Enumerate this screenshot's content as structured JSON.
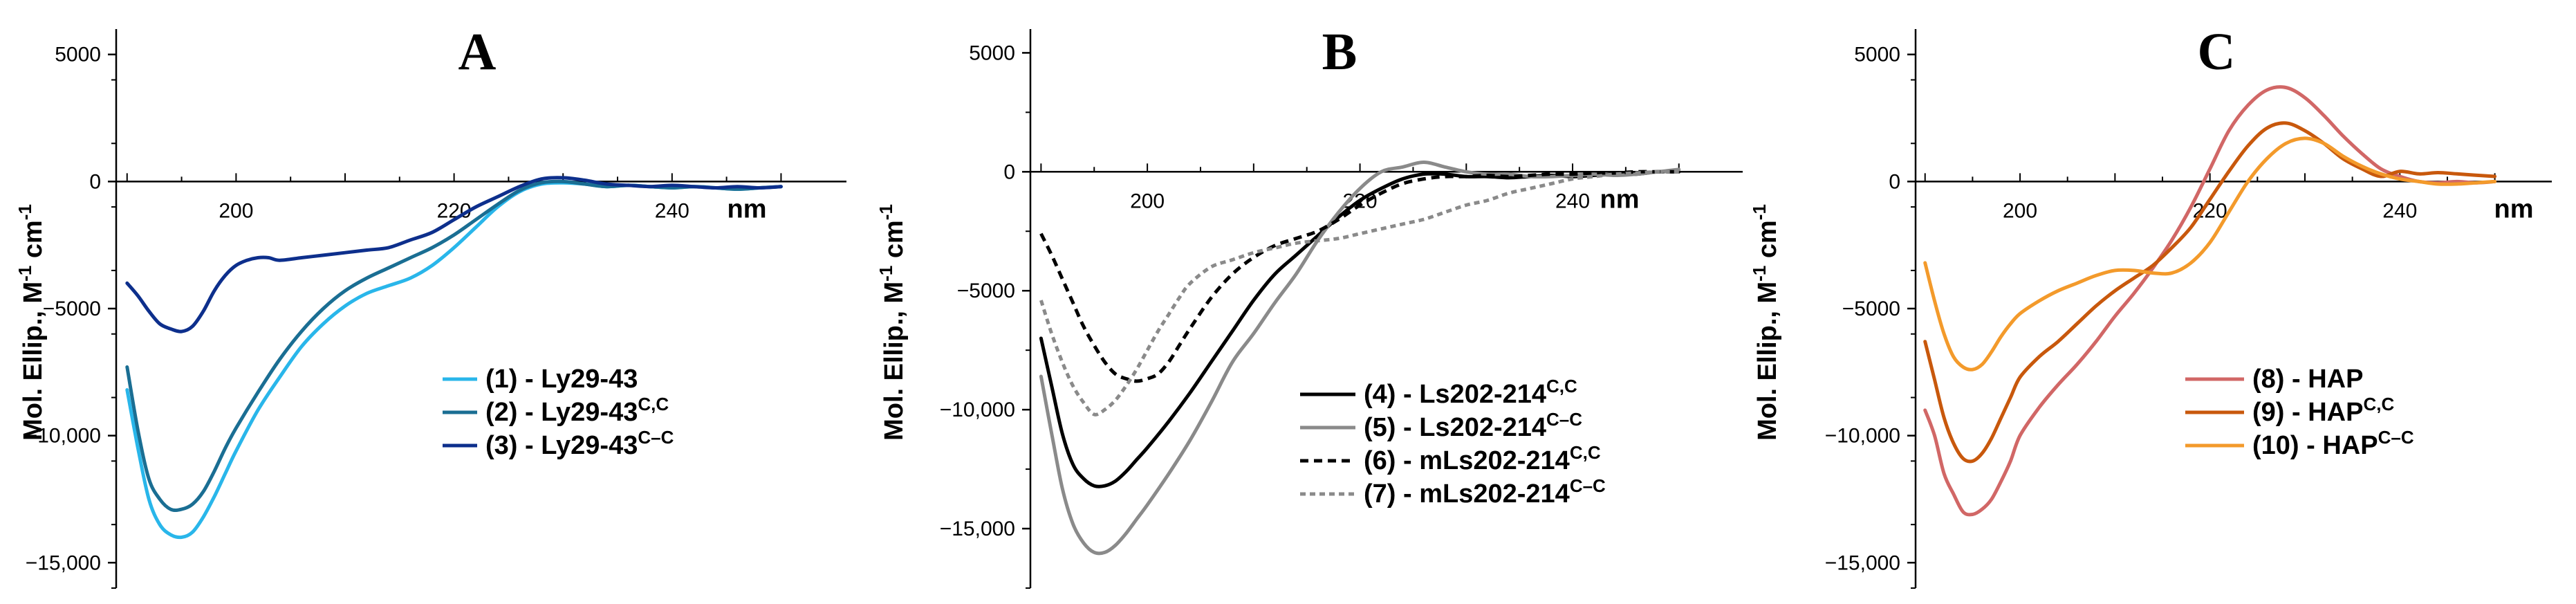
{
  "chart_data": [
    {
      "type": "line",
      "panel": "A",
      "xlabel": "nm",
      "ylabel_parts": [
        "Mol. Ellip., M",
        "-1",
        " cm",
        "-1"
      ],
      "xlim": [
        189,
        256
      ],
      "ylim": [
        -16000,
        6000
      ],
      "xticks": [
        200,
        220,
        240
      ],
      "yticks": [
        5000,
        0,
        -5000,
        -10000,
        -15000
      ],
      "ytick_labels": [
        "5000",
        "0",
        "−5000",
        "−10,000",
        "−15,000"
      ],
      "legend_position": "lower-right",
      "series": [
        {
          "label": "(1) - Ly29-43",
          "sup": "",
          "color": "#29b6ea",
          "dash": "solid",
          "x": [
            190,
            191,
            192,
            193,
            194,
            195,
            196,
            197,
            198,
            199,
            200,
            202,
            204,
            206,
            208,
            210,
            212,
            214,
            216,
            218,
            220,
            222,
            224,
            226,
            228,
            230,
            232,
            234,
            236,
            238,
            240,
            242,
            244,
            246,
            248,
            250
          ],
          "y": [
            -8200,
            -10500,
            -12500,
            -13500,
            -13900,
            -14000,
            -13800,
            -13200,
            -12400,
            -11500,
            -10600,
            -9000,
            -7700,
            -6500,
            -5600,
            -4900,
            -4400,
            -4100,
            -3800,
            -3300,
            -2600,
            -1800,
            -1000,
            -400,
            -100,
            -50,
            -100,
            -200,
            -150,
            -200,
            -250,
            -200,
            -250,
            -300,
            -250,
            -200
          ]
        },
        {
          "label": "(2) - Ly29-43",
          "sup": "C,C",
          "color": "#1a6e93",
          "dash": "solid",
          "x": [
            190,
            191,
            192,
            193,
            194,
            195,
            196,
            197,
            198,
            199,
            200,
            202,
            204,
            206,
            208,
            210,
            212,
            214,
            216,
            218,
            220,
            222,
            224,
            226,
            228,
            230,
            232,
            234,
            236,
            238,
            240,
            242,
            244,
            246,
            248,
            250
          ],
          "y": [
            -7300,
            -9800,
            -11700,
            -12500,
            -12900,
            -12900,
            -12700,
            -12200,
            -11400,
            -10500,
            -9700,
            -8300,
            -7000,
            -5900,
            -5000,
            -4300,
            -3800,
            -3400,
            -3000,
            -2600,
            -2100,
            -1500,
            -900,
            -350,
            -50,
            0,
            -100,
            -200,
            -150,
            -200,
            -250,
            -200,
            -250,
            -300,
            -250,
            -200
          ]
        },
        {
          "label": "(3) - Ly29-43",
          "sup": "C–C",
          "color": "#0d2f8c",
          "dash": "solid",
          "x": [
            190,
            191,
            192,
            193,
            194,
            195,
            196,
            197,
            198,
            199,
            200,
            201,
            202,
            203,
            204,
            206,
            208,
            210,
            212,
            214,
            216,
            218,
            220,
            222,
            224,
            226,
            228,
            230,
            232,
            234,
            236,
            238,
            240,
            242,
            244,
            246,
            248,
            250
          ],
          "y": [
            -4000,
            -4500,
            -5100,
            -5600,
            -5800,
            -5900,
            -5700,
            -5100,
            -4300,
            -3700,
            -3300,
            -3100,
            -3000,
            -3000,
            -3100,
            -3000,
            -2900,
            -2800,
            -2700,
            -2600,
            -2300,
            -2000,
            -1500,
            -1000,
            -600,
            -200,
            100,
            150,
            50,
            -100,
            -150,
            -200,
            -150,
            -200,
            -250,
            -200,
            -250,
            -200
          ]
        }
      ]
    },
    {
      "type": "line",
      "panel": "B",
      "xlabel": "nm",
      "ylabel_parts": [
        "Mol. Ellip., M",
        "-1",
        " cm",
        "-1"
      ],
      "xlim": [
        189,
        256
      ],
      "ylim": [
        -17500,
        6000
      ],
      "xticks": [
        200,
        220,
        240
      ],
      "yticks": [
        5000,
        0,
        -5000,
        -10000,
        -15000
      ],
      "ytick_labels": [
        "5000",
        "0",
        "−5000",
        "−10,000",
        "−15,000"
      ],
      "legend_position": "lower-right",
      "series": [
        {
          "label": "(4) -    Ls202-214",
          "sup": "C,C",
          "color": "#000000",
          "dash": "solid",
          "x": [
            190,
            191,
            192,
            193,
            194,
            195,
            196,
            197,
            198,
            199,
            200,
            202,
            204,
            206,
            208,
            210,
            212,
            214,
            216,
            218,
            220,
            222,
            224,
            226,
            228,
            230,
            232,
            234,
            236,
            238,
            240,
            242,
            244,
            246,
            248,
            250
          ],
          "y": [
            -7000,
            -9000,
            -11000,
            -12300,
            -12900,
            -13200,
            -13200,
            -13000,
            -12600,
            -12100,
            -11600,
            -10500,
            -9300,
            -8000,
            -6700,
            -5400,
            -4300,
            -3500,
            -2700,
            -1900,
            -1200,
            -700,
            -300,
            -100,
            -100,
            -200,
            -200,
            -250,
            -200,
            -150,
            -200,
            -150,
            -100,
            -100,
            0,
            0
          ]
        },
        {
          "label": "(5) -    Ls202-214",
          "sup": "C–C",
          "color": "#8a8a8a",
          "dash": "solid",
          "x": [
            190,
            191,
            192,
            193,
            194,
            195,
            196,
            197,
            198,
            199,
            200,
            202,
            204,
            206,
            208,
            210,
            212,
            214,
            216,
            218,
            220,
            222,
            224,
            226,
            228,
            230,
            232,
            234,
            236,
            238,
            240,
            242,
            244,
            246,
            248,
            250
          ],
          "y": [
            -8600,
            -11000,
            -13300,
            -14800,
            -15600,
            -16000,
            -16000,
            -15700,
            -15200,
            -14600,
            -14000,
            -12700,
            -11300,
            -9700,
            -8000,
            -6800,
            -5500,
            -4300,
            -2900,
            -1700,
            -700,
            0,
            200,
            400,
            200,
            0,
            -100,
            -100,
            -200,
            -200,
            -150,
            -100,
            -150,
            -100,
            0,
            100
          ]
        },
        {
          "label": "(6) - mLs202-214",
          "sup": "C,C",
          "color": "#000000",
          "dash": "12,8",
          "x": [
            190,
            191,
            192,
            193,
            194,
            195,
            196,
            197,
            198,
            199,
            200,
            201,
            202,
            203,
            204,
            206,
            208,
            210,
            212,
            214,
            216,
            218,
            220,
            222,
            224,
            226,
            228,
            230,
            232,
            234,
            236,
            238,
            240,
            242,
            244,
            246,
            248,
            250
          ],
          "y": [
            -2600,
            -3500,
            -4500,
            -5500,
            -6500,
            -7300,
            -8000,
            -8500,
            -8700,
            -8800,
            -8700,
            -8500,
            -8000,
            -7300,
            -6600,
            -5300,
            -4300,
            -3600,
            -3100,
            -2800,
            -2500,
            -2000,
            -1400,
            -900,
            -500,
            -300,
            -200,
            -200,
            -150,
            -200,
            -150,
            -100,
            -100,
            -50,
            -50,
            0,
            0,
            0
          ]
        },
        {
          "label": "(7) - mLs202-214",
          "sup": "C–C",
          "color": "#8a8a8a",
          "dash": "8,6",
          "x": [
            190,
            191,
            192,
            193,
            194,
            195,
            196,
            197,
            198,
            199,
            200,
            201,
            202,
            203,
            204,
            206,
            208,
            210,
            212,
            214,
            216,
            218,
            220,
            222,
            224,
            226,
            228,
            230,
            232,
            234,
            236,
            238,
            240,
            242,
            244,
            246,
            248,
            250
          ],
          "y": [
            -5400,
            -6800,
            -8000,
            -9000,
            -9700,
            -10200,
            -10000,
            -9600,
            -9000,
            -8300,
            -7500,
            -6700,
            -6000,
            -5300,
            -4700,
            -4000,
            -3700,
            -3400,
            -3200,
            -3000,
            -2900,
            -2800,
            -2600,
            -2400,
            -2200,
            -2000,
            -1700,
            -1400,
            -1200,
            -900,
            -700,
            -500,
            -300,
            -200,
            -100,
            -50,
            0,
            0
          ]
        }
      ]
    },
    {
      "type": "line",
      "panel": "C",
      "xlabel": "nm",
      "ylabel_parts": [
        "Mol. Ellip., M",
        "-1",
        " cm",
        "-1"
      ],
      "xlim": [
        189,
        256
      ],
      "ylim": [
        -16000,
        6000
      ],
      "xticks": [
        200,
        220,
        240
      ],
      "yticks": [
        5000,
        0,
        -5000,
        -10000,
        -15000
      ],
      "ytick_labels": [
        "5000",
        "0",
        "−5000",
        "−10,000",
        "−15,000"
      ],
      "legend_position": "lower-right",
      "series": [
        {
          "label": "(8)   - HAP",
          "sup": "",
          "color": "#d16766",
          "dash": "solid",
          "x": [
            190,
            191,
            192,
            193,
            194,
            195,
            196,
            197,
            198,
            199,
            200,
            202,
            204,
            206,
            208,
            210,
            212,
            214,
            216,
            218,
            220,
            222,
            224,
            226,
            228,
            230,
            232,
            234,
            236,
            238,
            240,
            242,
            244,
            246,
            248,
            250
          ],
          "y": [
            -9000,
            -10000,
            -11500,
            -12300,
            -13000,
            -13100,
            -12900,
            -12500,
            -11800,
            -11000,
            -10000,
            -8900,
            -8000,
            -7200,
            -6300,
            -5300,
            -4400,
            -3400,
            -2300,
            -1000,
            500,
            2000,
            3000,
            3600,
            3700,
            3300,
            2600,
            1800,
            1100,
            500,
            200,
            0,
            -50,
            0,
            -50,
            0
          ]
        },
        {
          "label": "(9)   - HAP",
          "sup": "C,C",
          "color": "#c8580c",
          "dash": "solid",
          "x": [
            190,
            191,
            192,
            193,
            194,
            195,
            196,
            197,
            198,
            199,
            200,
            202,
            204,
            206,
            208,
            210,
            212,
            214,
            216,
            218,
            220,
            222,
            224,
            226,
            228,
            230,
            232,
            234,
            236,
            238,
            240,
            242,
            244,
            246,
            248,
            250
          ],
          "y": [
            -6300,
            -7800,
            -9300,
            -10300,
            -10900,
            -11000,
            -10700,
            -10100,
            -9300,
            -8500,
            -7700,
            -6900,
            -6300,
            -5600,
            -4900,
            -4300,
            -3800,
            -3300,
            -2600,
            -1800,
            -700,
            400,
            1400,
            2100,
            2300,
            2000,
            1500,
            900,
            500,
            200,
            400,
            300,
            350,
            300,
            250,
            200
          ]
        },
        {
          "label": "(10) - HAP",
          "sup": "C–C",
          "color": "#f39a2b",
          "dash": "solid",
          "x": [
            190,
            191,
            192,
            193,
            194,
            195,
            196,
            197,
            198,
            199,
            200,
            202,
            204,
            206,
            208,
            210,
            212,
            214,
            216,
            218,
            220,
            222,
            224,
            226,
            228,
            230,
            232,
            234,
            236,
            238,
            240,
            242,
            244,
            246,
            248,
            250
          ],
          "y": [
            -3200,
            -4700,
            -6000,
            -6900,
            -7300,
            -7400,
            -7200,
            -6700,
            -6100,
            -5600,
            -5200,
            -4700,
            -4300,
            -4000,
            -3700,
            -3500,
            -3500,
            -3600,
            -3600,
            -3200,
            -2400,
            -1200,
            0,
            900,
            1500,
            1700,
            1500,
            1000,
            600,
            300,
            100,
            0,
            -100,
            -100,
            -50,
            0
          ]
        }
      ]
    }
  ]
}
